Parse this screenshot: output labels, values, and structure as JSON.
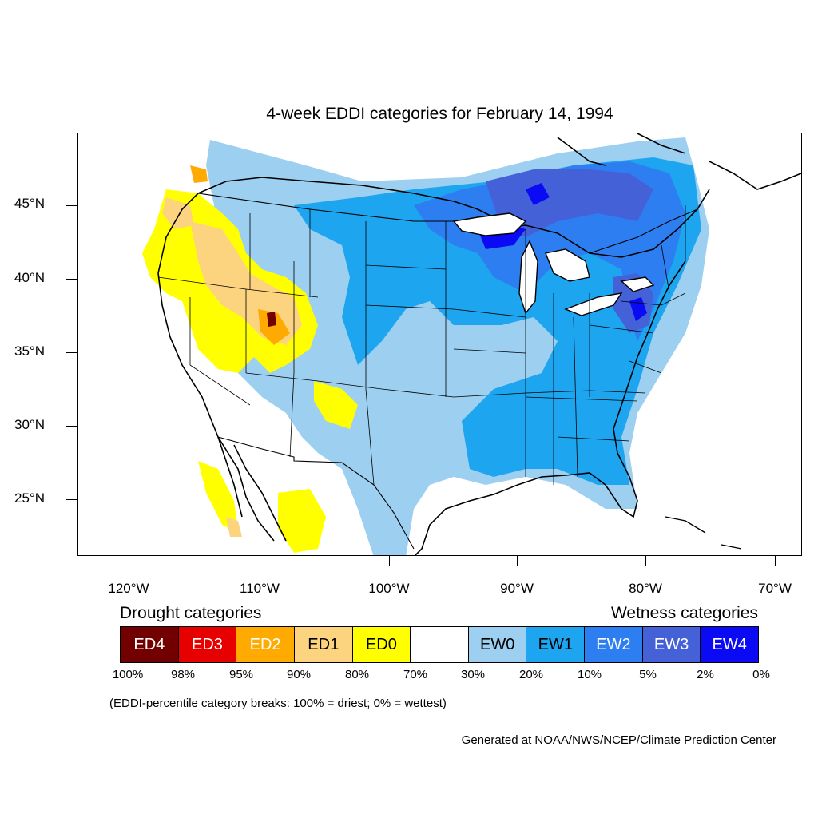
{
  "title": "4-week EDDI categories for February 14, 1994",
  "axes": {
    "lat_labels": [
      "45°N",
      "40°N",
      "35°N",
      "30°N",
      "25°N"
    ],
    "lon_labels": [
      "120°W",
      "110°W",
      "100°W",
      "90°W",
      "80°W",
      "70°W"
    ]
  },
  "legend": {
    "drought_heading": "Drought categories",
    "wetness_heading": "Wetness categories",
    "categories": [
      {
        "label": "ED4",
        "color": "#730000",
        "text_color": "#ffffff"
      },
      {
        "label": "ED3",
        "color": "#e60000",
        "text_color": "#ffffff"
      },
      {
        "label": "ED2",
        "color": "#ffaa00",
        "text_color": "#ffffff"
      },
      {
        "label": "ED1",
        "color": "#fcd37f",
        "text_color": "#000000"
      },
      {
        "label": "ED0",
        "color": "#ffff00",
        "text_color": "#000000"
      },
      {
        "label": "",
        "color": "#ffffff",
        "text_color": "#000000"
      },
      {
        "label": "EW0",
        "color": "#9dcff0",
        "text_color": "#000000"
      },
      {
        "label": "EW1",
        "color": "#1ea5f0",
        "text_color": "#000000"
      },
      {
        "label": "EW2",
        "color": "#2d7ef0",
        "text_color": "#ffffff"
      },
      {
        "label": "EW3",
        "color": "#4461d8",
        "text_color": "#ffffff"
      },
      {
        "label": "EW4",
        "color": "#0a0af5",
        "text_color": "#ffffff"
      }
    ],
    "breaks": [
      "100%",
      "98%",
      "95%",
      "90%",
      "80%",
      "70%",
      "30%",
      "20%",
      "10%",
      "5%",
      "2%",
      "0%"
    ]
  },
  "note": "(EDDI-percentile category breaks: 100% = driest; 0% = wettest)",
  "credit": "Generated at NOAA/NWS/NCEP/Climate Prediction Center"
}
